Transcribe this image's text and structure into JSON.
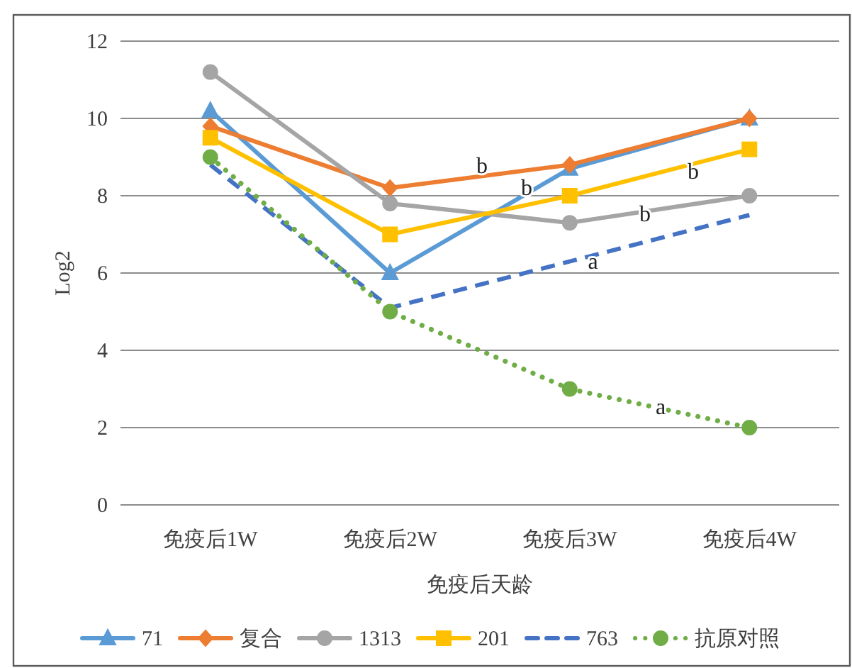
{
  "chart_data": {
    "type": "line",
    "xlabel": "免疫后天龄",
    "ylabel": "Log2",
    "categories": [
      "免疫后1W",
      "免疫后2W",
      "免疫后3W",
      "免疫后4W"
    ],
    "ylim": [
      0,
      12
    ],
    "yticks": [
      0,
      2,
      4,
      6,
      8,
      10,
      12
    ],
    "grid": "y",
    "legend": "bottom",
    "series": [
      {
        "name": "71",
        "color": "#5b9bd5",
        "marker": "triangle",
        "line_style": "solid",
        "values": [
          10.2,
          6.0,
          8.7,
          10.0
        ]
      },
      {
        "name": "复合",
        "color": "#ed7d31",
        "marker": "diamond",
        "line_style": "solid",
        "values": [
          9.8,
          8.2,
          8.8,
          10.0
        ]
      },
      {
        "name": "1313",
        "color": "#a5a5a5",
        "marker": "circle",
        "line_style": "solid",
        "values": [
          11.2,
          7.8,
          7.3,
          8.0
        ]
      },
      {
        "name": "201",
        "color": "#ffc000",
        "marker": "square",
        "line_style": "solid",
        "values": [
          9.5,
          7.0,
          8.0,
          9.2
        ]
      },
      {
        "name": "763",
        "color": "#4472c4",
        "marker": "none",
        "line_style": "dashed",
        "values": [
          8.8,
          5.1,
          6.3,
          7.5
        ]
      },
      {
        "name": "抗原对照",
        "color": "#70ad47",
        "marker": "circle",
        "line_style": "dotted",
        "values": [
          9.0,
          5.0,
          3.0,
          2.0
        ]
      }
    ],
    "annotations": [
      "b",
      {
        "text": "b",
        "x": "免疫后3W",
        "y": 8.2
      },
      "b",
      "b",
      {
        "text": "a",
        "x": "免疫后3W",
        "y": 6.3
      },
      "a"
    ]
  }
}
